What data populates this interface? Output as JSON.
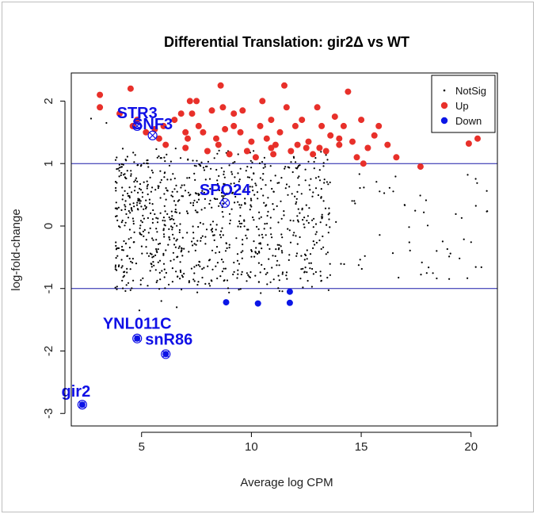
{
  "chart_data": {
    "type": "scatter",
    "title": "Differential Translation: gir2Δ vs WT",
    "xlabel": "Average log CPM",
    "ylabel": "log-fold-change",
    "xlim": [
      1.8,
      21.2
    ],
    "ylim": [
      -3.2,
      2.45
    ],
    "xticks": [
      "5",
      "10",
      "15",
      "20"
    ],
    "yticks": [
      "-3",
      "-2",
      "-1",
      "0",
      "1",
      "2"
    ],
    "threshold_lines": [
      1,
      -1
    ],
    "colors": {
      "notsig": "#000000",
      "up": "#e8302a",
      "down": "#0b16e6",
      "line": "#1a1aa8",
      "label": "#1010e6"
    },
    "legend": {
      "position": "top-right",
      "entries": [
        "NotSig",
        "Up",
        "Down"
      ]
    },
    "up_points": [
      [
        3.1,
        2.1
      ],
      [
        3.1,
        1.9
      ],
      [
        4.0,
        1.8
      ],
      [
        4.5,
        2.2
      ],
      [
        4.6,
        1.6
      ],
      [
        4.8,
        1.7
      ],
      [
        5.2,
        1.5
      ],
      [
        5.6,
        1.55
      ],
      [
        5.8,
        1.4
      ],
      [
        6.1,
        1.3
      ],
      [
        6.5,
        1.7
      ],
      [
        6.8,
        1.8
      ],
      [
        7.0,
        1.5
      ],
      [
        7.2,
        2.0
      ],
      [
        7.3,
        1.8
      ],
      [
        7.5,
        2.0
      ],
      [
        7.6,
        1.6
      ],
      [
        7.8,
        1.5
      ],
      [
        8.0,
        1.2
      ],
      [
        8.2,
        1.85
      ],
      [
        8.4,
        1.4
      ],
      [
        8.6,
        2.25
      ],
      [
        8.7,
        1.9
      ],
      [
        8.8,
        1.55
      ],
      [
        9.0,
        1.15
      ],
      [
        9.2,
        1.6
      ],
      [
        9.5,
        1.5
      ],
      [
        9.8,
        1.2
      ],
      [
        10.0,
        1.35
      ],
      [
        10.2,
        1.1
      ],
      [
        10.4,
        1.6
      ],
      [
        10.5,
        2.0
      ],
      [
        10.7,
        1.4
      ],
      [
        10.9,
        1.7
      ],
      [
        11.1,
        1.3
      ],
      [
        11.3,
        1.5
      ],
      [
        11.5,
        2.25
      ],
      [
        11.6,
        1.9
      ],
      [
        11.8,
        1.2
      ],
      [
        12.0,
        1.6
      ],
      [
        12.3,
        1.7
      ],
      [
        12.6,
        1.35
      ],
      [
        12.8,
        1.15
      ],
      [
        13.0,
        1.9
      ],
      [
        13.2,
        1.6
      ],
      [
        13.4,
        1.2
      ],
      [
        13.6,
        1.45
      ],
      [
        13.8,
        1.75
      ],
      [
        14.0,
        1.3
      ],
      [
        14.2,
        1.6
      ],
      [
        14.4,
        2.15
      ],
      [
        14.6,
        1.35
      ],
      [
        14.8,
        1.1
      ],
      [
        15.0,
        1.7
      ],
      [
        15.3,
        1.25
      ],
      [
        15.6,
        1.45
      ],
      [
        15.8,
        1.6
      ],
      [
        16.2,
        1.3
      ],
      [
        16.6,
        1.1
      ],
      [
        17.7,
        0.95
      ],
      [
        19.9,
        1.32
      ],
      [
        20.3,
        1.4
      ],
      [
        6.0,
        1.6
      ],
      [
        7.1,
        1.4
      ],
      [
        9.6,
        1.85
      ],
      [
        12.1,
        1.3
      ],
      [
        14.0,
        1.4
      ],
      [
        13.1,
        1.25
      ],
      [
        7.0,
        1.25
      ],
      [
        11.0,
        1.15
      ],
      [
        15.1,
        1.0
      ],
      [
        8.5,
        1.3
      ],
      [
        10.9,
        1.25
      ],
      [
        12.5,
        1.25
      ],
      [
        9.2,
        1.8
      ]
    ],
    "down_points": [
      [
        8.85,
        -1.22
      ],
      [
        10.3,
        -1.24
      ],
      [
        11.75,
        -1.05
      ],
      [
        11.75,
        -1.23
      ]
    ],
    "labeled_genes": [
      {
        "name": "gir2",
        "x": 2.3,
        "y": -2.86
      },
      {
        "name": "YNL011C",
        "x": 4.8,
        "y": -1.8
      },
      {
        "name": "snR86",
        "x": 6.1,
        "y": -2.05
      },
      {
        "name": "STR3",
        "x": 4.8,
        "y": 1.6
      },
      {
        "name": "SNF3",
        "x": 5.5,
        "y": 1.45
      },
      {
        "name": "SPO24",
        "x": 8.8,
        "y": 0.37
      }
    ]
  }
}
